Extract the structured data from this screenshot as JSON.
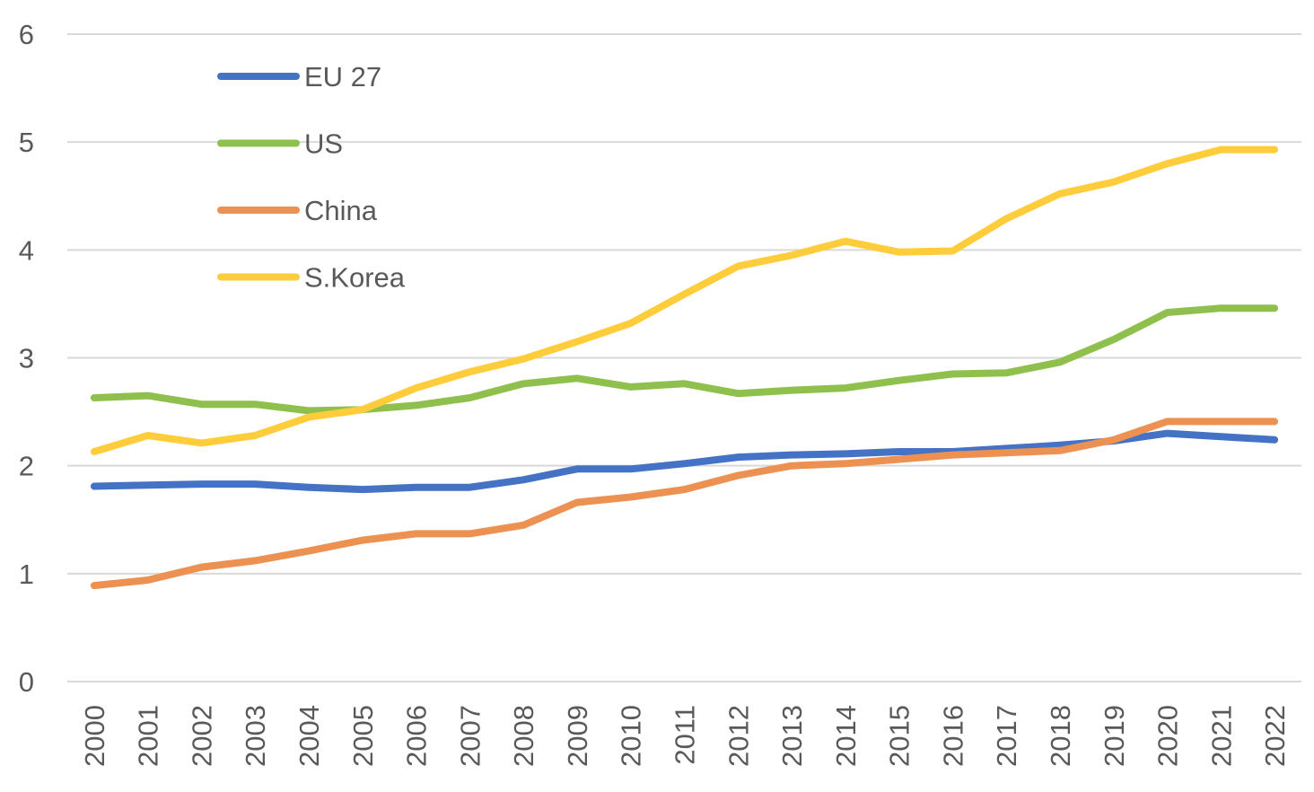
{
  "chart_data": {
    "type": "line",
    "title": "",
    "xlabel": "",
    "ylabel": "",
    "ylim": [
      0,
      6
    ],
    "yticks": [
      0,
      1,
      2,
      3,
      4,
      5,
      6
    ],
    "grid": true,
    "legend_position": "top-left",
    "categories": [
      "2000",
      "2001",
      "2002",
      "2003",
      "2004",
      "2005",
      "2006",
      "2007",
      "2008",
      "2009",
      "2010",
      "2011",
      "2012",
      "2013",
      "2014",
      "2015",
      "2016",
      "2017",
      "2018",
      "2019",
      "2020",
      "2021",
      "2022"
    ],
    "series": [
      {
        "name": "EU 27",
        "color": "#4472c4",
        "values": [
          1.81,
          1.82,
          1.83,
          1.83,
          1.8,
          1.78,
          1.8,
          1.8,
          1.87,
          1.97,
          1.97,
          2.02,
          2.08,
          2.1,
          2.11,
          2.13,
          2.13,
          2.16,
          2.19,
          2.23,
          2.3,
          2.27,
          2.24
        ]
      },
      {
        "name": "US",
        "color": "#8fc04d",
        "values": [
          2.63,
          2.65,
          2.57,
          2.57,
          2.51,
          2.52,
          2.56,
          2.63,
          2.76,
          2.81,
          2.73,
          2.76,
          2.67,
          2.7,
          2.72,
          2.79,
          2.85,
          2.86,
          2.96,
          3.17,
          3.42,
          3.46,
          3.46
        ]
      },
      {
        "name": "China",
        "color": "#ed9152",
        "values": [
          0.89,
          0.94,
          1.06,
          1.12,
          1.21,
          1.31,
          1.37,
          1.37,
          1.45,
          1.66,
          1.71,
          1.78,
          1.91,
          2.0,
          2.02,
          2.06,
          2.1,
          2.12,
          2.14,
          2.24,
          2.41,
          2.41,
          2.41
        ]
      },
      {
        "name": "S.Korea",
        "color": "#ffcd3c",
        "values": [
          2.13,
          2.28,
          2.21,
          2.28,
          2.45,
          2.52,
          2.72,
          2.87,
          2.99,
          3.15,
          3.32,
          3.59,
          3.85,
          3.95,
          4.08,
          3.98,
          3.99,
          4.29,
          4.52,
          4.63,
          4.8,
          4.93,
          4.93
        ]
      }
    ]
  }
}
